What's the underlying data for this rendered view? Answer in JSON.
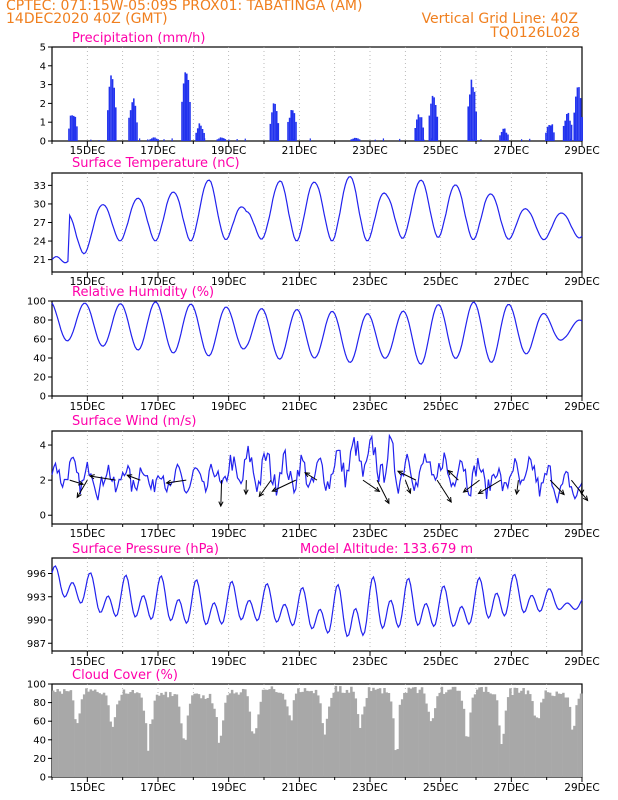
{
  "header": {
    "line1_left": "CPTEC:   071:15W-05:09S   PROX01: TABATINGA (AM)",
    "line2_left": "14DEC2020 40Z (GMT)",
    "line2_right": "Vertical Grid Line: 40Z",
    "line3_right": "TQ0126L028",
    "color": "#f07f1e"
  },
  "colors": {
    "line": "#2222ee",
    "bar": "#2233ee",
    "cloud": "#a8a8a8",
    "title": "#ff00aa",
    "grid": "#aaaaaa"
  },
  "chart_data": [
    {
      "type": "bar",
      "title": "Precipitation (mm/h)",
      "ylim": [
        0,
        5
      ],
      "yticks": [
        0,
        1,
        2,
        3,
        4,
        5
      ],
      "xlim_days": [
        14.0,
        29.0
      ],
      "x_tick_labels": [
        "15DEC",
        "17DEC",
        "19DEC",
        "21DEC",
        "23DEC",
        "25DEC",
        "27DEC",
        "29DEC"
      ],
      "grid": "vertical dotted",
      "bursts": [
        {
          "day": 14.6,
          "peak": 1.7
        },
        {
          "day": 15.7,
          "peak": 3.8
        },
        {
          "day": 16.3,
          "peak": 2.5
        },
        {
          "day": 16.9,
          "peak": 0.2
        },
        {
          "day": 17.8,
          "peak": 4.1
        },
        {
          "day": 18.2,
          "peak": 1.0
        },
        {
          "day": 18.8,
          "peak": 0.2
        },
        {
          "day": 20.3,
          "peak": 2.3
        },
        {
          "day": 20.8,
          "peak": 2.0
        },
        {
          "day": 22.6,
          "peak": 0.2
        },
        {
          "day": 24.4,
          "peak": 1.6
        },
        {
          "day": 24.8,
          "peak": 2.7
        },
        {
          "day": 25.9,
          "peak": 3.6
        },
        {
          "day": 26.8,
          "peak": 0.7
        },
        {
          "day": 28.1,
          "peak": 1.1
        },
        {
          "day": 28.6,
          "peak": 1.7
        },
        {
          "day": 28.9,
          "peak": 3.0
        }
      ]
    },
    {
      "type": "line",
      "title": "Surface Temperature (nC)",
      "ylim": [
        19,
        35
      ],
      "yticks": [
        21,
        24,
        27,
        30,
        33
      ],
      "x_tick_labels": [
        "15DEC",
        "17DEC",
        "19DEC",
        "21DEC",
        "23DEC",
        "25DEC",
        "27DEC",
        "29DEC"
      ],
      "daily_min": [
        20.5,
        24.0,
        24.0,
        24.0,
        24.0,
        24.5,
        24.0,
        24.0,
        24.0,
        24.0,
        25.0,
        24.0,
        24.5,
        24.0,
        24.5
      ],
      "daily_max": [
        28.5,
        30.0,
        31.0,
        32.0,
        34.0,
        29.0,
        34.0,
        33.5,
        34.5,
        31.5,
        34.0,
        33.0,
        31.5,
        29.0,
        28.5
      ]
    },
    {
      "type": "line",
      "title": "Relative Humidity (%)",
      "ylim": [
        0,
        100
      ],
      "yticks": [
        0,
        20,
        40,
        60,
        80,
        100
      ],
      "x_tick_labels": [
        "15DEC",
        "17DEC",
        "19DEC",
        "21DEC",
        "23DEC",
        "25DEC",
        "27DEC",
        "29DEC"
      ],
      "daily_min": [
        58,
        52,
        48,
        45,
        42,
        50,
        38,
        40,
        35,
        40,
        33,
        40,
        35,
        45,
        60
      ],
      "daily_max": [
        100,
        95,
        100,
        98,
        95,
        92,
        92,
        90,
        88,
        85,
        95,
        98,
        100,
        92,
        80
      ]
    },
    {
      "type": "line",
      "title": "Surface Wind (m/s)",
      "ylim": [
        -0.5,
        4.8
      ],
      "yticks": [
        0,
        2,
        4
      ],
      "x_tick_labels": [
        "15DEC",
        "17DEC",
        "19DEC",
        "21DEC",
        "23DEC",
        "25DEC",
        "27DEC",
        "29DEC"
      ],
      "daily_mean": [
        2.4,
        2.0,
        2.2,
        1.9,
        2.0,
        2.6,
        2.5,
        2.2,
        3.2,
        3.0,
        2.4,
        2.6,
        2.0,
        2.3,
        1.6
      ],
      "daily_amp": [
        0.8,
        1.0,
        0.9,
        0.8,
        0.9,
        1.2,
        1.1,
        1.0,
        1.2,
        1.3,
        1.2,
        1.1,
        0.9,
        1.0,
        0.8
      ],
      "vector_days": [
        14.5,
        15.0,
        15.8,
        16.5,
        17.8,
        18.8,
        19.5,
        20.2,
        20.9,
        21.5,
        22.8,
        23.2,
        24.0,
        24.3,
        24.9,
        25.5,
        26.1,
        26.7,
        27.2,
        28.1,
        28.7,
        29.0
      ]
    },
    {
      "type": "line",
      "title": "Surface Pressure (hPa)",
      "annotation": "Model Altitude: 133.679 m",
      "ylim": [
        986,
        998
      ],
      "yticks": [
        987,
        990,
        993,
        996
      ],
      "x_tick_labels": [
        "15DEC",
        "17DEC",
        "19DEC",
        "21DEC",
        "23DEC",
        "25DEC",
        "27DEC",
        "29DEC"
      ],
      "daily_high": [
        997,
        995.5,
        996,
        995.5,
        995,
        995,
        994.5,
        994,
        995,
        996,
        995,
        994,
        996.5,
        995.5,
        993
      ],
      "daily_low": [
        992,
        989.5,
        989,
        988.5,
        988,
        989,
        988.5,
        987.5,
        986,
        987.5,
        988,
        988,
        989,
        990,
        991
      ]
    },
    {
      "type": "area",
      "title": "Cloud Cover (%)",
      "ylim": [
        0,
        100
      ],
      "yticks": [
        0,
        20,
        40,
        60,
        80,
        100
      ],
      "x_tick_labels": [
        "15DEC",
        "17DEC",
        "19DEC",
        "21DEC",
        "23DEC",
        "25DEC",
        "27DEC",
        "29DEC"
      ],
      "daily_high": [
        97,
        95,
        96,
        92,
        90,
        96,
        98,
        97,
        98,
        97,
        98,
        97,
        97,
        96,
        94
      ],
      "daily_low": [
        40,
        35,
        10,
        30,
        20,
        10,
        40,
        35,
        30,
        15,
        40,
        30,
        20,
        40,
        45
      ]
    }
  ]
}
